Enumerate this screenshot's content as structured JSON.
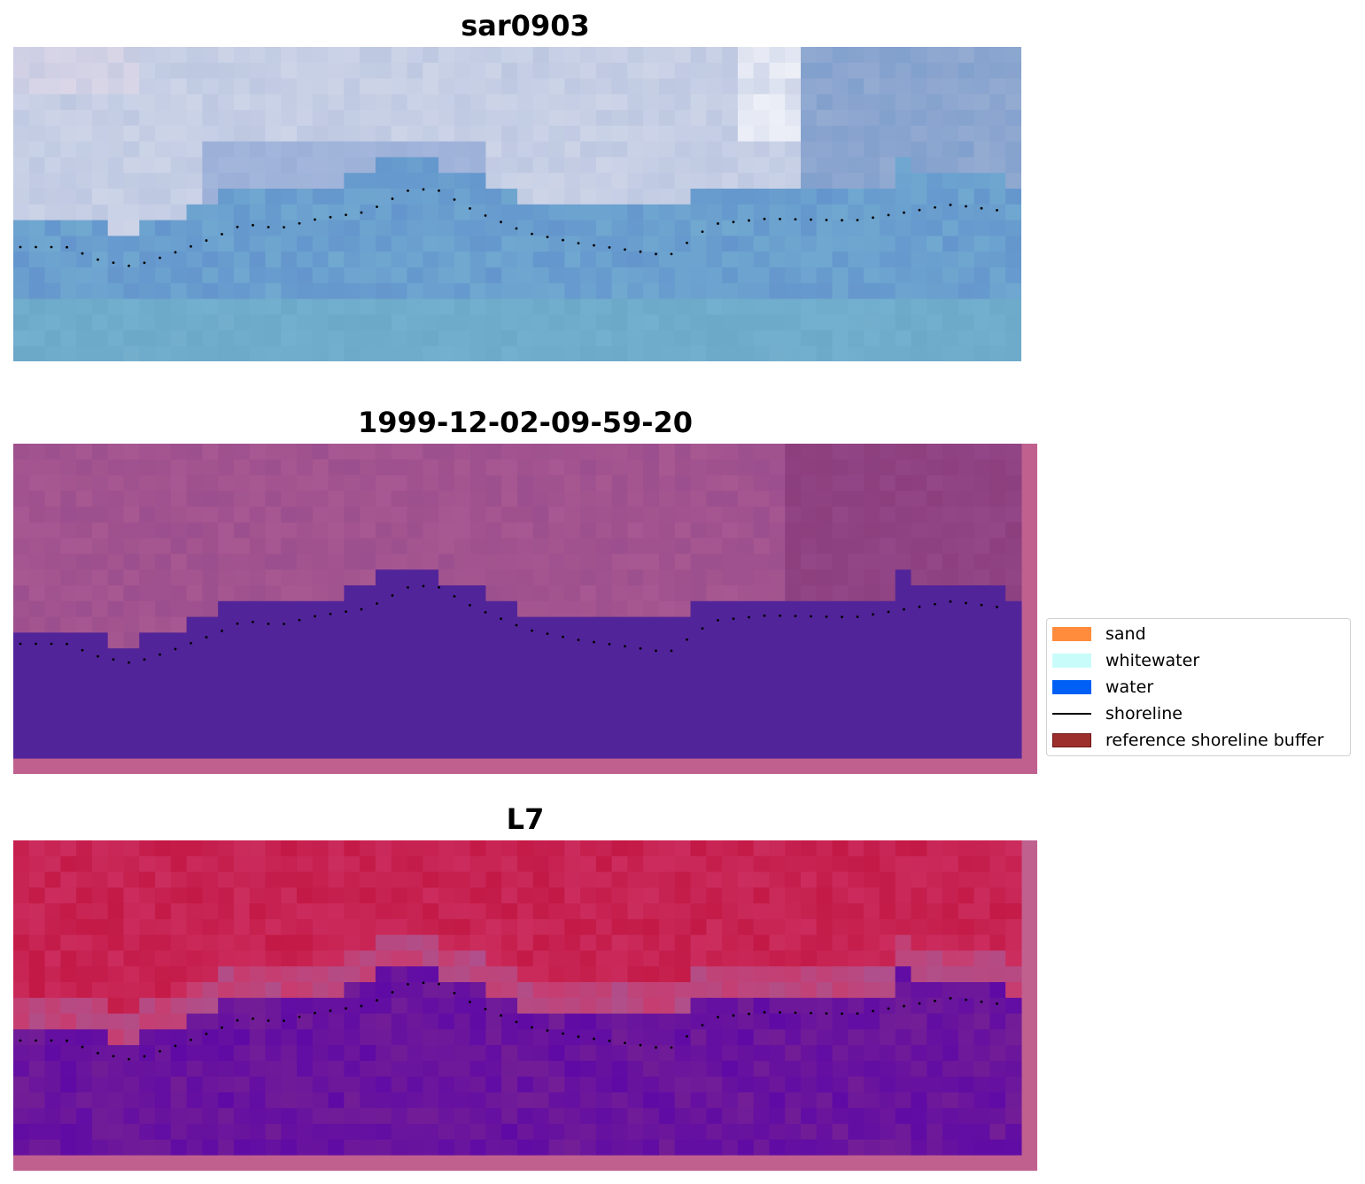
{
  "panels": [
    {
      "title": "sar0903",
      "style": "rgb"
    },
    {
      "title": "1999-12-02-09-59-20",
      "style": "classified"
    },
    {
      "title": "L7",
      "style": "index"
    }
  ],
  "legend": [
    {
      "label": "sand",
      "color": "#ff8c3c",
      "kind": "swatch"
    },
    {
      "label": "whitewater",
      "color": "#c8fcfa",
      "kind": "swatch"
    },
    {
      "label": "water",
      "color": "#005ff5",
      "kind": "swatch"
    },
    {
      "label": "shoreline",
      "color": "#000000",
      "kind": "line"
    },
    {
      "label": "reference shoreline buffer",
      "color": "#9c2f2c",
      "kind": "swatch"
    }
  ],
  "colors": {
    "buffer_pink": "#c0608f",
    "water_purple": "#52249a"
  }
}
